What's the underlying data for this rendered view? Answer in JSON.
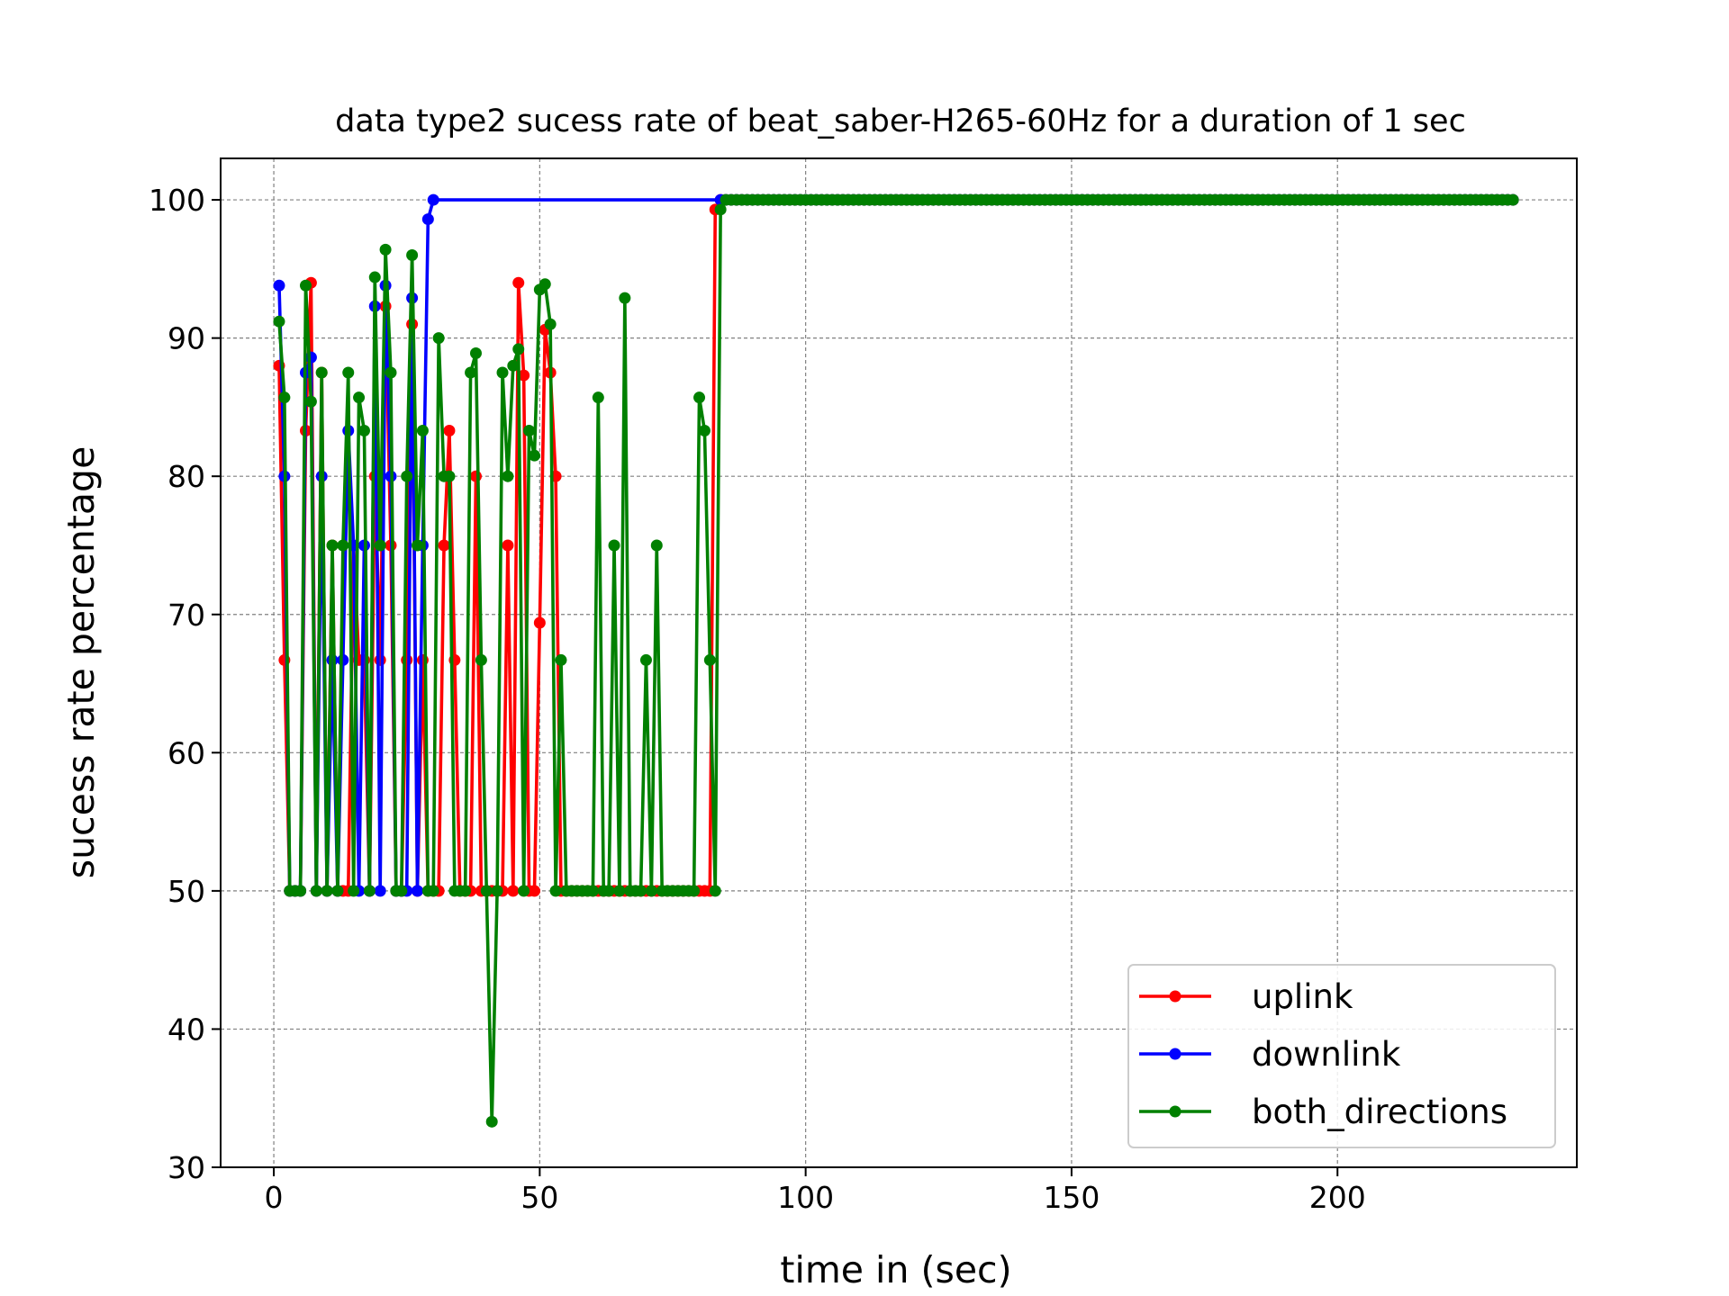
{
  "chart_data": {
    "type": "line",
    "title": "data type2 sucess rate of beat_saber-H265-60Hz for a duration of 1 sec",
    "xlabel": "time in (sec)",
    "ylabel": "sucess rate percentage",
    "xlim": [
      -10,
      245
    ],
    "ylim": [
      30,
      103
    ],
    "xticks": [
      0,
      50,
      100,
      150,
      200
    ],
    "yticks": [
      30,
      40,
      50,
      60,
      70,
      80,
      90,
      100
    ],
    "grid": true,
    "legend_position": "lower-right",
    "plateau_end_x": 233,
    "series": [
      {
        "name": "uplink",
        "color": "#ff0000",
        "points": [
          [
            1,
            88
          ],
          [
            2,
            66.7
          ],
          [
            3,
            50
          ],
          [
            4,
            50
          ],
          [
            5,
            50
          ],
          [
            6,
            83.3
          ],
          [
            7,
            94
          ],
          [
            8,
            50
          ],
          [
            9,
            87.5
          ],
          [
            10,
            50
          ],
          [
            11,
            75
          ],
          [
            12,
            50
          ],
          [
            13,
            50
          ],
          [
            14,
            50
          ],
          [
            15,
            75
          ],
          [
            16,
            66.7
          ],
          [
            17,
            66.7
          ],
          [
            18,
            50
          ],
          [
            19,
            80
          ],
          [
            20,
            66.7
          ],
          [
            21,
            92.3
          ],
          [
            22,
            75
          ],
          [
            23,
            50
          ],
          [
            24,
            50
          ],
          [
            25,
            66.7
          ],
          [
            26,
            91
          ],
          [
            27,
            50
          ],
          [
            28,
            66.7
          ],
          [
            29,
            50
          ],
          [
            30,
            50
          ],
          [
            31,
            50
          ],
          [
            32,
            75
          ],
          [
            33,
            83.3
          ],
          [
            34,
            66.7
          ],
          [
            35,
            50
          ],
          [
            36,
            50
          ],
          [
            37,
            50
          ],
          [
            38,
            80
          ],
          [
            39,
            50
          ],
          [
            40,
            50
          ],
          [
            41,
            50
          ],
          [
            42,
            50
          ],
          [
            43,
            50
          ],
          [
            44,
            75
          ],
          [
            45,
            50
          ],
          [
            46,
            94
          ],
          [
            47,
            87.3
          ],
          [
            48,
            50
          ],
          [
            49,
            50
          ],
          [
            50,
            69.4
          ],
          [
            51,
            90.6
          ],
          [
            52,
            87.5
          ],
          [
            53,
            80
          ],
          [
            54,
            50
          ],
          [
            55,
            50
          ],
          [
            56,
            50
          ],
          [
            57,
            50
          ],
          [
            58,
            50
          ],
          [
            59,
            50
          ],
          [
            60,
            50
          ],
          [
            61,
            50
          ],
          [
            62,
            50
          ],
          [
            63,
            50
          ],
          [
            64,
            50
          ],
          [
            65,
            50
          ],
          [
            66,
            50
          ],
          [
            67,
            50
          ],
          [
            68,
            50
          ],
          [
            69,
            50
          ],
          [
            70,
            50
          ],
          [
            71,
            50
          ],
          [
            72,
            50
          ],
          [
            73,
            50
          ],
          [
            74,
            50
          ],
          [
            75,
            50
          ],
          [
            76,
            50
          ],
          [
            77,
            50
          ],
          [
            78,
            50
          ],
          [
            79,
            50
          ],
          [
            80,
            50
          ],
          [
            81,
            50
          ],
          [
            82,
            50
          ],
          [
            83,
            99.3
          ],
          [
            84,
            100
          ],
          [
            85,
            100
          ]
        ]
      },
      {
        "name": "downlink",
        "color": "#0000ff",
        "points": [
          [
            1,
            93.8
          ],
          [
            2,
            80
          ],
          [
            3,
            50
          ],
          [
            4,
            50
          ],
          [
            5,
            50
          ],
          [
            6,
            87.5
          ],
          [
            7,
            88.6
          ],
          [
            8,
            50
          ],
          [
            9,
            80
          ],
          [
            10,
            50
          ],
          [
            11,
            66.7
          ],
          [
            12,
            50
          ],
          [
            13,
            66.7
          ],
          [
            14,
            83.3
          ],
          [
            15,
            75
          ],
          [
            16,
            50
          ],
          [
            17,
            75
          ],
          [
            18,
            50
          ],
          [
            19,
            92.3
          ],
          [
            20,
            50
          ],
          [
            21,
            93.8
          ],
          [
            22,
            80
          ],
          [
            23,
            50
          ],
          [
            24,
            50
          ],
          [
            25,
            50
          ],
          [
            26,
            92.9
          ],
          [
            27,
            50
          ],
          [
            28,
            75
          ],
          [
            29,
            98.6
          ],
          [
            30,
            100
          ],
          [
            84,
            100
          ],
          [
            85,
            100
          ]
        ]
      },
      {
        "name": "both_directions",
        "color": "#008000",
        "points": [
          [
            1,
            91.2
          ],
          [
            2,
            85.7
          ],
          [
            3,
            50
          ],
          [
            4,
            50
          ],
          [
            5,
            50
          ],
          [
            6,
            93.8
          ],
          [
            7,
            85.4
          ],
          [
            8,
            50
          ],
          [
            9,
            87.5
          ],
          [
            10,
            50
          ],
          [
            11,
            75
          ],
          [
            12,
            50
          ],
          [
            13,
            75
          ],
          [
            14,
            87.5
          ],
          [
            15,
            50
          ],
          [
            16,
            85.7
          ],
          [
            17,
            83.3
          ],
          [
            18,
            50
          ],
          [
            19,
            94.4
          ],
          [
            20,
            75
          ],
          [
            21,
            96.4
          ],
          [
            22,
            87.5
          ],
          [
            23,
            50
          ],
          [
            24,
            50
          ],
          [
            25,
            80
          ],
          [
            26,
            96
          ],
          [
            27,
            75
          ],
          [
            28,
            83.3
          ],
          [
            29,
            50
          ],
          [
            30,
            50
          ],
          [
            31,
            90
          ],
          [
            32,
            80
          ],
          [
            33,
            80
          ],
          [
            34,
            50
          ],
          [
            35,
            50
          ],
          [
            36,
            50
          ],
          [
            37,
            87.5
          ],
          [
            38,
            88.9
          ],
          [
            39,
            66.7
          ],
          [
            40,
            50
          ],
          [
            41,
            33.3
          ],
          [
            42,
            50
          ],
          [
            43,
            87.5
          ],
          [
            44,
            80
          ],
          [
            45,
            88
          ],
          [
            46,
            89.2
          ],
          [
            47,
            50
          ],
          [
            48,
            83.3
          ],
          [
            49,
            81.5
          ],
          [
            50,
            93.5
          ],
          [
            51,
            93.9
          ],
          [
            52,
            91
          ],
          [
            53,
            50
          ],
          [
            54,
            66.7
          ],
          [
            55,
            50
          ],
          [
            56,
            50
          ],
          [
            57,
            50
          ],
          [
            58,
            50
          ],
          [
            59,
            50
          ],
          [
            60,
            50
          ],
          [
            61,
            85.7
          ],
          [
            62,
            50
          ],
          [
            63,
            50
          ],
          [
            64,
            75
          ],
          [
            65,
            50
          ],
          [
            66,
            92.9
          ],
          [
            67,
            50
          ],
          [
            68,
            50
          ],
          [
            69,
            50
          ],
          [
            70,
            66.7
          ],
          [
            71,
            50
          ],
          [
            72,
            75
          ],
          [
            73,
            50
          ],
          [
            74,
            50
          ],
          [
            75,
            50
          ],
          [
            76,
            50
          ],
          [
            77,
            50
          ],
          [
            78,
            50
          ],
          [
            79,
            50
          ],
          [
            80,
            85.7
          ],
          [
            81,
            83.3
          ],
          [
            82,
            66.7
          ],
          [
            83,
            50
          ],
          [
            84,
            99.3
          ],
          [
            85,
            100
          ]
        ]
      }
    ]
  }
}
